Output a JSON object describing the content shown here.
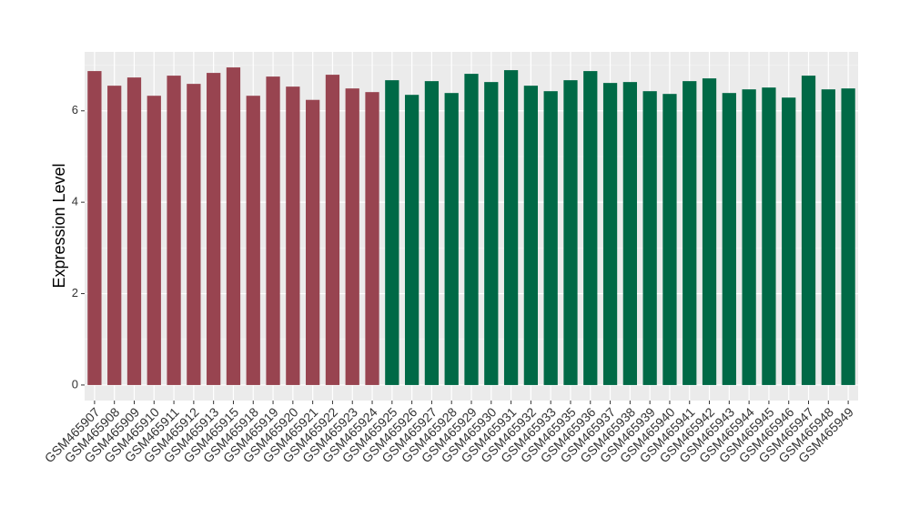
{
  "chart_data": {
    "type": "bar",
    "y_label": "Expression Level",
    "categories": [
      "GSM465907",
      "GSM465908",
      "GSM465909",
      "GSM465910",
      "GSM465911",
      "GSM465912",
      "GSM465913",
      "GSM465915",
      "GSM465918",
      "GSM465919",
      "GSM465920",
      "GSM465921",
      "GSM465922",
      "GSM465923",
      "GSM465924",
      "GSM465925",
      "GSM465926",
      "GSM465927",
      "GSM465928",
      "GSM465929",
      "GSM465930",
      "GSM465931",
      "GSM465932",
      "GSM465933",
      "GSM465935",
      "GSM465936",
      "GSM465937",
      "GSM465938",
      "GSM465939",
      "GSM465940",
      "GSM465941",
      "GSM465942",
      "GSM465943",
      "GSM465944",
      "GSM465945",
      "GSM465946",
      "GSM465947",
      "GSM465948",
      "GSM465949"
    ],
    "values": [
      6.87,
      6.55,
      6.73,
      6.33,
      6.77,
      6.59,
      6.83,
      6.95,
      6.33,
      6.75,
      6.53,
      6.24,
      6.79,
      6.49,
      6.41,
      6.67,
      6.35,
      6.65,
      6.39,
      6.81,
      6.63,
      6.89,
      6.55,
      6.43,
      6.67,
      6.87,
      6.61,
      6.63,
      6.43,
      6.37,
      6.65,
      6.71,
      6.39,
      6.47,
      6.51,
      6.29,
      6.77,
      6.47,
      6.49
    ],
    "colors": [
      "#984450",
      "#984450",
      "#984450",
      "#984450",
      "#984450",
      "#984450",
      "#984450",
      "#984450",
      "#984450",
      "#984450",
      "#984450",
      "#984450",
      "#984450",
      "#984450",
      "#984450",
      "#006946",
      "#006946",
      "#006946",
      "#006946",
      "#006946",
      "#006946",
      "#006946",
      "#006946",
      "#006946",
      "#006946",
      "#006946",
      "#006946",
      "#006946",
      "#006946",
      "#006946",
      "#006946",
      "#006946",
      "#006946",
      "#006946",
      "#006946",
      "#006946",
      "#006946",
      "#006946",
      "#006946"
    ],
    "ylim": [
      -0.34,
      7.29
    ],
    "yticks": [
      0,
      2,
      4,
      6
    ],
    "grid": true
  }
}
